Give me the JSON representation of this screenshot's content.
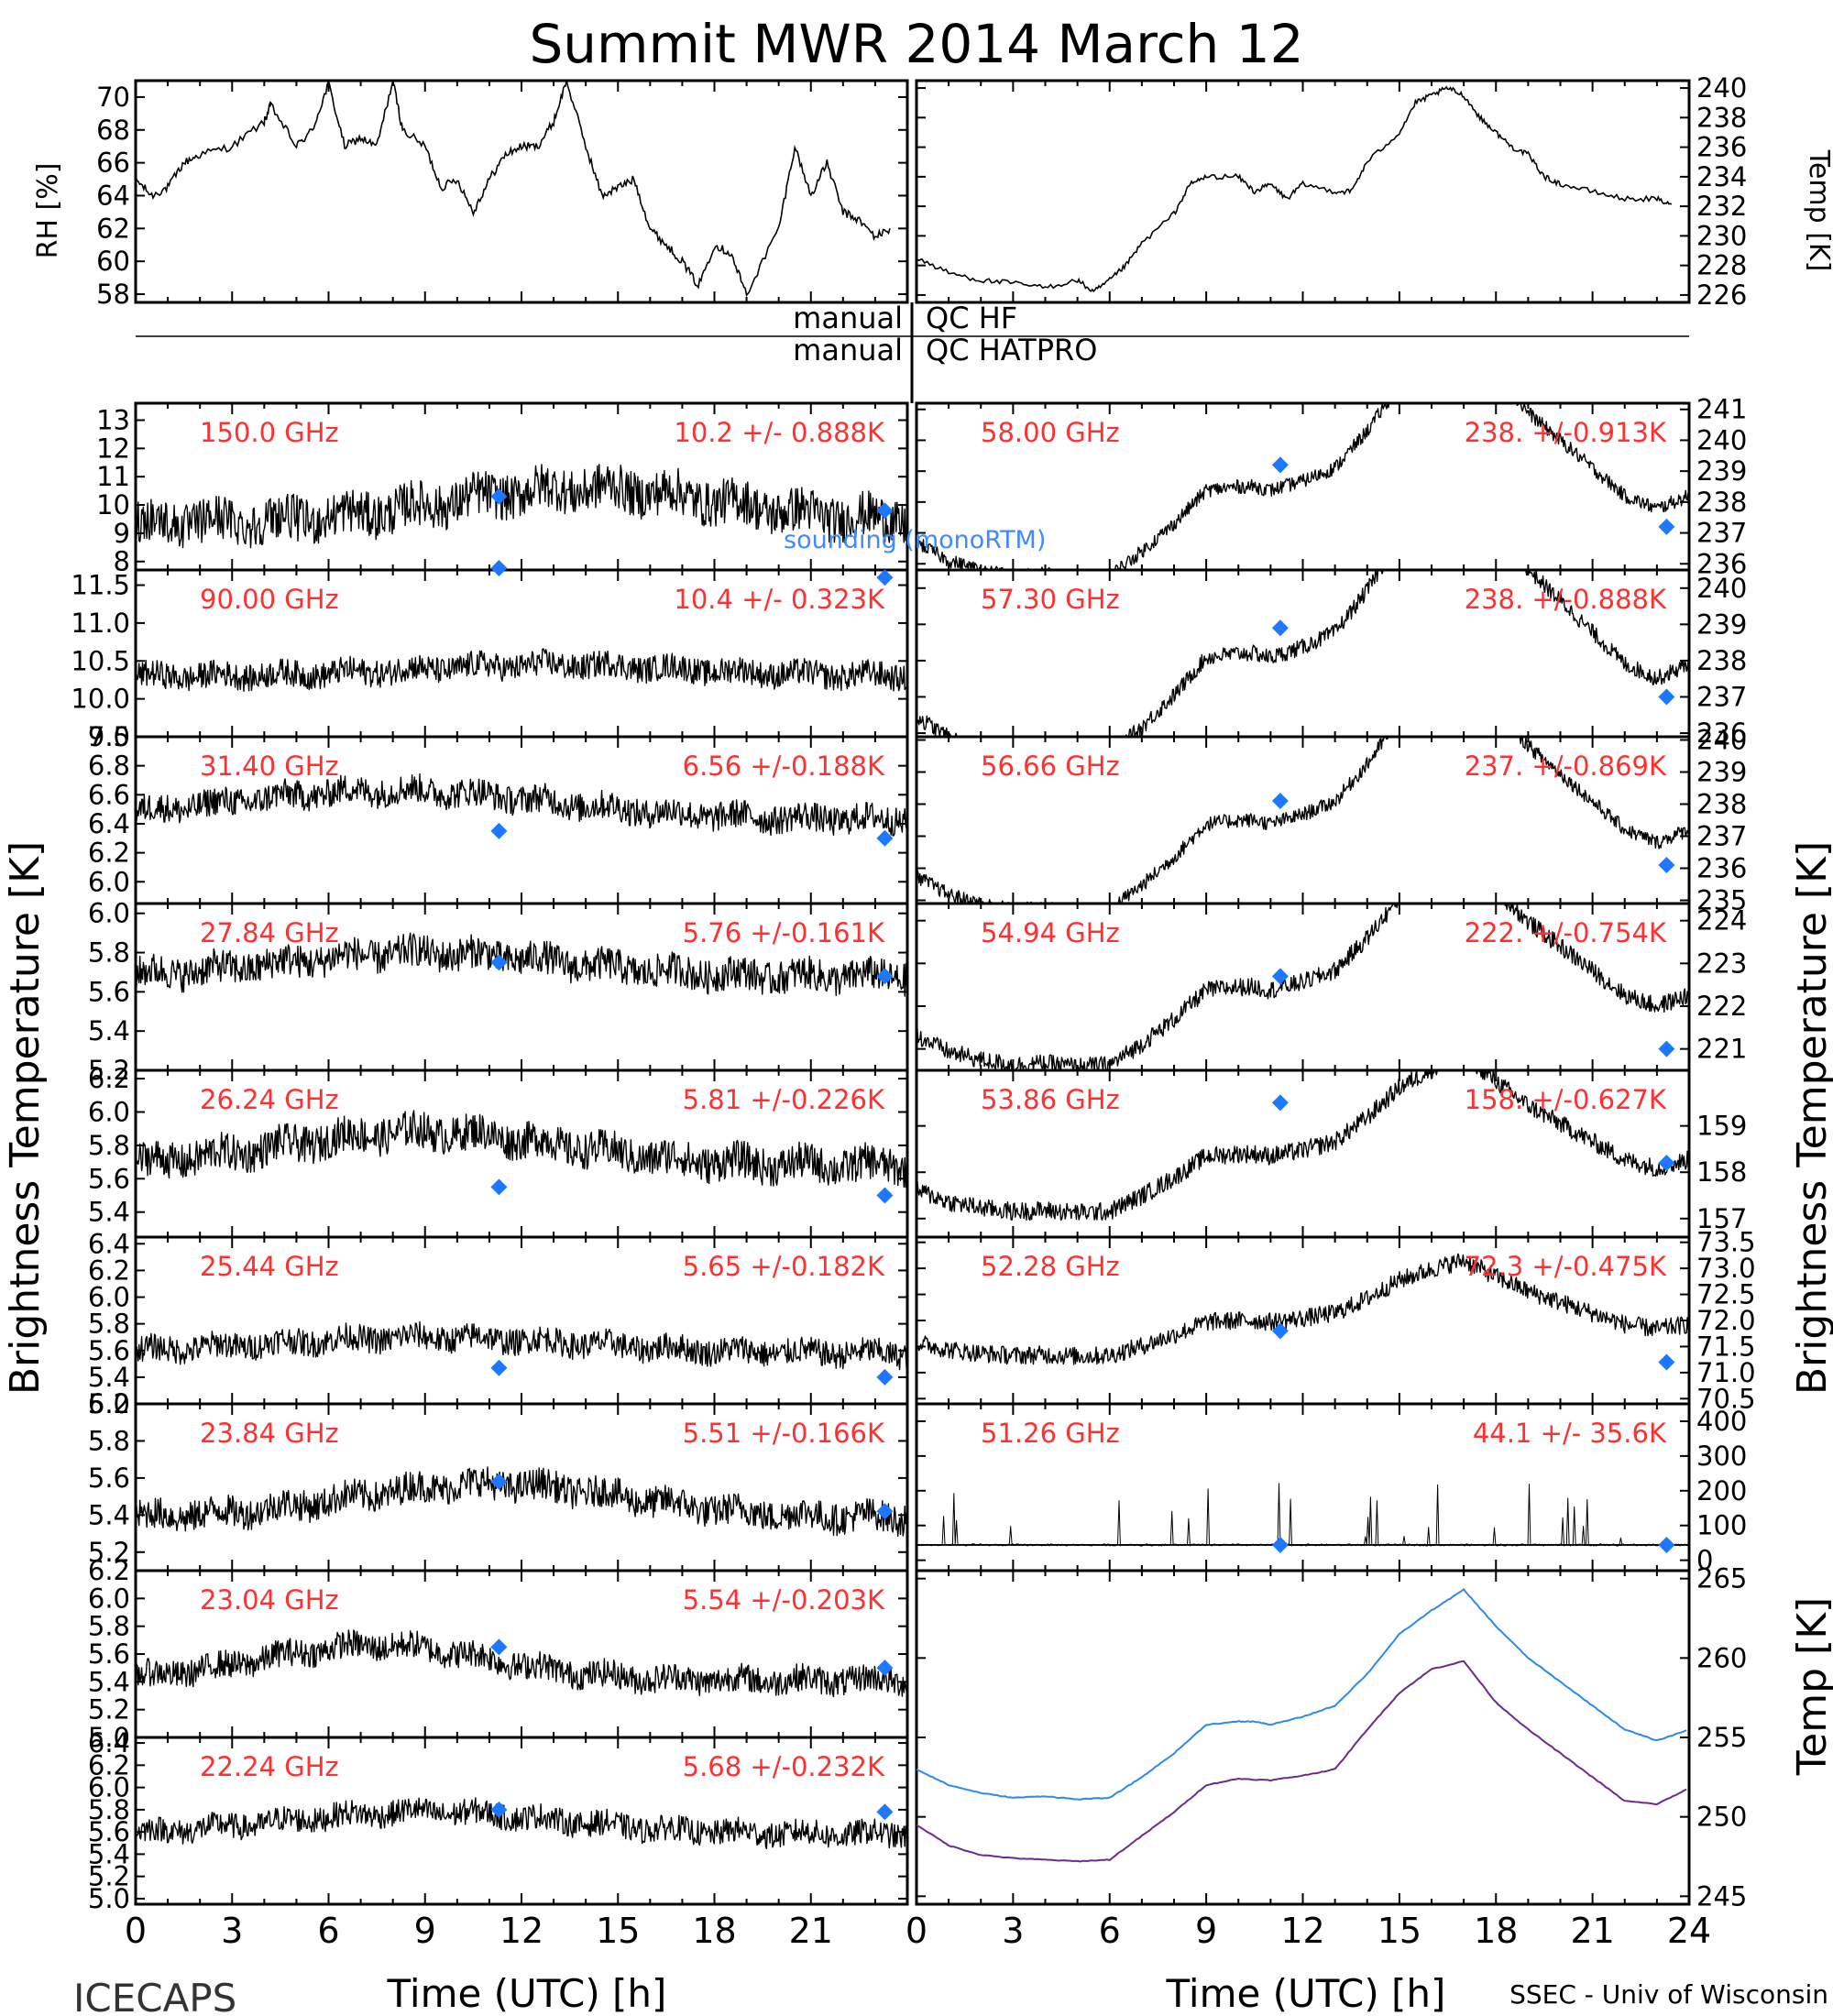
{
  "title": "Summit MWR 2014 March 12",
  "credits": {
    "left": "ICECAPS",
    "right": "SSEC - Univ of Wisconsin"
  },
  "qc": {
    "word": "manual",
    "hf": "QC HF",
    "hatpro": "QC HATPRO"
  },
  "axes": {
    "x_label": "Time (UTC) [h]",
    "x_ticks_left": [
      "0",
      "3",
      "6",
      "9",
      "12",
      "15",
      "18",
      "21"
    ],
    "x_ticks_right": [
      "0",
      "3",
      "6",
      "9",
      "12",
      "15",
      "18",
      "21",
      "24"
    ],
    "y_label_tb": "Brightness Temperature [K]",
    "rh_label": "RH [%]",
    "temp_label": "Temp [K]",
    "bb_label": "Temp [K]"
  },
  "colors": {
    "trace": "#000000",
    "label": "#ff3030",
    "sounding": "#1e78ff",
    "hatpro": "#2c8ae8",
    "hf": "#702a8c",
    "annotation_sounding": "#3d8bff"
  },
  "sounding_label": "sounding (monoRTM)",
  "chart_data": [
    {
      "type": "line",
      "id": "rh",
      "x_range": [
        0,
        24
      ],
      "ylim": [
        57.5,
        71
      ],
      "y_ticks": [
        "58",
        "60",
        "62",
        "64",
        "66",
        "68",
        "70"
      ],
      "ylabel": "RH [%]",
      "points": [
        [
          0,
          65
        ],
        [
          0.5,
          64
        ],
        [
          1,
          64.5
        ],
        [
          1.5,
          66
        ],
        [
          2,
          66.5
        ],
        [
          3,
          67
        ],
        [
          4,
          68.5
        ],
        [
          4.2,
          69.5
        ],
        [
          5,
          67
        ],
        [
          5.5,
          68
        ],
        [
          6,
          70.8
        ],
        [
          6.5,
          67
        ],
        [
          7,
          67.5
        ],
        [
          7.5,
          67
        ],
        [
          8,
          71
        ],
        [
          8.3,
          68
        ],
        [
          9,
          67
        ],
        [
          9.5,
          64.5
        ],
        [
          10,
          65
        ],
        [
          10.5,
          63
        ],
        [
          11,
          65
        ],
        [
          11.5,
          66.5
        ],
        [
          12,
          67
        ],
        [
          12.5,
          67
        ],
        [
          13,
          68.5
        ],
        [
          13.4,
          71
        ],
        [
          14,
          67
        ],
        [
          14.5,
          64
        ],
        [
          15,
          64.5
        ],
        [
          15.5,
          65
        ],
        [
          16,
          62
        ],
        [
          16.5,
          61
        ],
        [
          17,
          60
        ],
        [
          17.5,
          58.5
        ],
        [
          18,
          61
        ],
        [
          18.5,
          60.5
        ],
        [
          19,
          58
        ],
        [
          20,
          62
        ],
        [
          20.5,
          67
        ],
        [
          21,
          64
        ],
        [
          21.5,
          66
        ],
        [
          22,
          63
        ],
        [
          22.5,
          62.5
        ],
        [
          23,
          61.5
        ],
        [
          23.5,
          62
        ]
      ]
    },
    {
      "type": "line",
      "id": "temp",
      "x_range": [
        0,
        24
      ],
      "ylim": [
        225.5,
        240.5
      ],
      "y_ticks": [
        "226",
        "228",
        "230",
        "232",
        "234",
        "236",
        "238",
        "240"
      ],
      "ylabel": "Temp [K]",
      "points": [
        [
          0,
          228.5
        ],
        [
          1,
          227.5
        ],
        [
          2,
          227
        ],
        [
          3,
          226.8
        ],
        [
          4,
          226.5
        ],
        [
          5,
          227
        ],
        [
          5.5,
          226.2
        ],
        [
          6,
          227
        ],
        [
          6.5,
          228
        ],
        [
          7,
          229.5
        ],
        [
          8,
          231.5
        ],
        [
          8.5,
          233.5
        ],
        [
          9,
          234
        ],
        [
          10,
          234
        ],
        [
          10.5,
          233
        ],
        [
          11,
          233.5
        ],
        [
          11.5,
          232.5
        ],
        [
          12,
          233.5
        ],
        [
          13,
          233
        ],
        [
          13.5,
          233
        ],
        [
          14,
          235
        ],
        [
          15,
          237
        ],
        [
          15.5,
          239
        ],
        [
          16,
          239.5
        ],
        [
          16.5,
          240
        ],
        [
          17,
          239.5
        ],
        [
          17.5,
          238
        ],
        [
          18,
          237
        ],
        [
          18.5,
          236
        ],
        [
          19,
          235.5
        ],
        [
          19.5,
          234
        ],
        [
          20,
          233.5
        ],
        [
          21,
          233
        ],
        [
          22,
          232.5
        ],
        [
          23,
          232.5
        ],
        [
          23.5,
          232
        ]
      ]
    },
    {
      "type": "scatter",
      "id": "ch150",
      "freq": "150.0 GHz",
      "stats": "10.2 +/- 0.888K",
      "side": "left",
      "ylim": [
        7.7,
        13.6
      ],
      "y_ticks": [
        "8",
        "9",
        "10",
        "11",
        "12",
        "13"
      ],
      "noise": 1.6,
      "shape": "bump",
      "base": 9.8,
      "amp": 1.2,
      "peak": 14,
      "width": 6,
      "sounding": [
        [
          11.3,
          10.3
        ],
        [
          23.3,
          9.8
        ]
      ]
    },
    {
      "type": "scatter",
      "id": "ch90",
      "freq": "90.00 GHz",
      "stats": "10.4 +/- 0.323K",
      "side": "left",
      "ylim": [
        9.5,
        11.7
      ],
      "y_ticks": [
        "9.5",
        "10.0",
        "10.5",
        "11.0",
        "11.5"
      ],
      "noise": 0.35,
      "shape": "bump",
      "base": 10.35,
      "amp": 0.15,
      "peak": 13,
      "width": 6,
      "sounding": [
        [
          11.3,
          11.85
        ],
        [
          23.3,
          11.6
        ]
      ]
    },
    {
      "type": "scatter",
      "id": "ch3140",
      "freq": "31.40 GHz",
      "stats": "6.56 +/-0.188K",
      "side": "left",
      "ylim": [
        5.85,
        7.0
      ],
      "y_ticks": [
        "5.8",
        "6.0",
        "6.2",
        "6.4",
        "6.6",
        "6.8",
        "7.0"
      ],
      "noise": 0.2,
      "shape": "bump",
      "base": 6.5,
      "amp": 0.2,
      "peak": 8,
      "width": 7,
      "sounding": [
        [
          11.3,
          6.35
        ],
        [
          23.3,
          6.3
        ]
      ]
    },
    {
      "type": "scatter",
      "id": "ch2784",
      "freq": "27.84 GHz",
      "stats": "5.76 +/-0.161K",
      "side": "left",
      "ylim": [
        5.2,
        6.05
      ],
      "y_ticks": [
        "5.2",
        "5.4",
        "5.6",
        "5.8",
        "6.0"
      ],
      "noise": 0.17,
      "shape": "bump",
      "base": 5.72,
      "amp": 0.12,
      "peak": 9,
      "width": 6,
      "sounding": [
        [
          11.3,
          5.75
        ],
        [
          23.3,
          5.68
        ]
      ]
    },
    {
      "type": "scatter",
      "id": "ch2624",
      "freq": "26.24 GHz",
      "stats": "5.81 +/-0.226K",
      "side": "left",
      "ylim": [
        5.25,
        6.25
      ],
      "y_ticks": [
        "5.4",
        "5.6",
        "5.8",
        "6.0",
        "6.2"
      ],
      "noise": 0.22,
      "shape": "bump",
      "base": 5.75,
      "amp": 0.2,
      "peak": 9,
      "width": 6,
      "sounding": [
        [
          11.3,
          5.55
        ],
        [
          23.3,
          5.5
        ]
      ]
    },
    {
      "type": "scatter",
      "id": "ch2544",
      "freq": "25.44 GHz",
      "stats": "5.65 +/-0.182K",
      "side": "left",
      "ylim": [
        5.2,
        6.45
      ],
      "y_ticks": [
        "5.2",
        "5.4",
        "5.6",
        "5.8",
        "6.0",
        "6.2",
        "6.4"
      ],
      "noise": 0.2,
      "shape": "bump",
      "base": 5.62,
      "amp": 0.12,
      "peak": 9,
      "width": 7,
      "sounding": [
        [
          11.3,
          5.47
        ],
        [
          23.3,
          5.4
        ]
      ]
    },
    {
      "type": "scatter",
      "id": "ch2384",
      "freq": "23.84 GHz",
      "stats": "5.51 +/-0.166K",
      "side": "left",
      "ylim": [
        5.1,
        6.0
      ],
      "y_ticks": [
        "5.2",
        "5.4",
        "5.6",
        "5.8",
        "6.0"
      ],
      "noise": 0.17,
      "shape": "bump",
      "base": 5.45,
      "amp": 0.18,
      "peak": 11,
      "width": 6,
      "sounding": [
        [
          11.3,
          5.58
        ],
        [
          23.3,
          5.42
        ]
      ]
    },
    {
      "type": "scatter",
      "id": "ch2304",
      "freq": "23.04 GHz",
      "stats": "5.54 +/-0.203K",
      "side": "left",
      "ylim": [
        5.0,
        6.2
      ],
      "y_ticks": [
        "5.0",
        "5.2",
        "5.4",
        "5.6",
        "5.8",
        "6.0",
        "6.2"
      ],
      "noise": 0.2,
      "shape": "bump",
      "base": 5.5,
      "amp": 0.25,
      "peak": 7.5,
      "width": 5,
      "sounding": [
        [
          11.3,
          5.65
        ],
        [
          23.3,
          5.5
        ]
      ]
    },
    {
      "type": "scatter",
      "id": "ch2224",
      "freq": "22.24 GHz",
      "stats": "5.68 +/-0.232K",
      "side": "left",
      "ylim": [
        4.95,
        6.45
      ],
      "y_ticks": [
        "5.0",
        "5.2",
        "5.4",
        "5.6",
        "5.8",
        "6.0",
        "6.2",
        "6.4"
      ],
      "noise": 0.23,
      "shape": "bump",
      "base": 5.65,
      "amp": 0.2,
      "peak": 9,
      "width": 6,
      "sounding": [
        [
          11.3,
          5.8
        ],
        [
          23.3,
          5.78
        ]
      ]
    },
    {
      "type": "scatter",
      "id": "ch5800",
      "freq": "58.00 GHz",
      "stats": "238. +/-0.913K",
      "side": "right",
      "ylim": [
        235.8,
        241.2
      ],
      "y_ticks": [
        "236",
        "237",
        "238",
        "239",
        "240",
        "241"
      ],
      "noise": 0.45,
      "shape": "bb",
      "offset": -17.5,
      "scale": 0.6,
      "sounding": [
        [
          11.3,
          239.2
        ],
        [
          23.3,
          237.2
        ]
      ]
    },
    {
      "type": "scatter",
      "id": "ch5730",
      "freq": "57.30 GHz",
      "stats": "238. +/-0.888K",
      "side": "right",
      "ylim": [
        235.9,
        240.5
      ],
      "y_ticks": [
        "236",
        "237",
        "238",
        "239",
        "240"
      ],
      "noise": 0.45,
      "shape": "bb",
      "offset": -17.5,
      "scale": 0.58,
      "sounding": [
        [
          11.3,
          238.9
        ],
        [
          23.3,
          237.0
        ]
      ]
    },
    {
      "type": "scatter",
      "id": "ch5666",
      "freq": "56.66 GHz",
      "stats": "237. +/-0.869K",
      "side": "right",
      "ylim": [
        234.9,
        240.1
      ],
      "y_ticks": [
        "235",
        "236",
        "237",
        "238",
        "239",
        "240"
      ],
      "noise": 0.45,
      "shape": "bb",
      "offset": -18.3,
      "scale": 0.58,
      "sounding": [
        [
          11.3,
          238.1
        ],
        [
          23.3,
          236.1
        ]
      ]
    },
    {
      "type": "scatter",
      "id": "ch5494",
      "freq": "54.94 GHz",
      "stats": "222. +/-0.754K",
      "side": "right",
      "ylim": [
        220.5,
        224.4
      ],
      "y_ticks": [
        "221",
        "222",
        "223",
        "224"
      ],
      "noise": 0.42,
      "shape": "bb",
      "offset": -27.8,
      "scale": 0.38,
      "sounding": [
        [
          11.3,
          222.7
        ],
        [
          23.3,
          221.0
        ]
      ]
    },
    {
      "type": "scatter",
      "id": "ch5386",
      "freq": "53.86 GHz",
      "stats": "158. +/-0.627K",
      "side": "right",
      "ylim": [
        156.6,
        160.2
      ],
      "y_ticks": [
        "157",
        "158",
        "159"
      ],
      "noise": 0.4,
      "shape": "bb",
      "offset": -91,
      "scale": 0.26,
      "sounding": [
        [
          11.3,
          159.5
        ],
        [
          23.3,
          158.2
        ]
      ]
    },
    {
      "type": "scatter",
      "id": "ch5228",
      "freq": "52.28 GHz",
      "stats": "72.3 +/-0.475K",
      "side": "right",
      "ylim": [
        70.4,
        73.6
      ],
      "y_ticks": [
        "70.5",
        "71.0",
        "71.5",
        "72.0",
        "72.5",
        "73.0",
        "73.5"
      ],
      "noise": 0.35,
      "shape": "bb",
      "offset": -180.3,
      "scale": 0.14,
      "sounding": [
        [
          11.3,
          71.8
        ],
        [
          23.3,
          71.2
        ]
      ]
    },
    {
      "type": "scatter",
      "id": "ch5126",
      "freq": "51.26 GHz",
      "stats": "44.1 +/- 35.6K",
      "side": "right",
      "ylim": [
        -30,
        450
      ],
      "y_ticks": [
        "0",
        "100",
        "200",
        "300",
        "400"
      ],
      "noise": 0,
      "shape": "spiky",
      "base": 44,
      "sounding": [
        [
          11.3,
          44
        ],
        [
          23.3,
          44
        ]
      ]
    },
    {
      "type": "line",
      "id": "blackbody",
      "x_range": [
        0,
        24
      ],
      "ylim": [
        244.5,
        265.5
      ],
      "y_ticks": [
        "245",
        "250",
        "255",
        "260",
        "265"
      ],
      "ylabel": "Temp [K]",
      "series": [
        {
          "name": "Blackbody HATPRO",
          "color": "#2c8ae8",
          "points": [
            [
              0,
              253
            ],
            [
              1,
              252
            ],
            [
              2,
              251.5
            ],
            [
              3,
              251.2
            ],
            [
              4,
              251.3
            ],
            [
              5,
              251.1
            ],
            [
              6,
              251.2
            ],
            [
              7,
              252.5
            ],
            [
              8,
              254
            ],
            [
              9,
              255.8
            ],
            [
              10,
              256
            ],
            [
              10.5,
              256
            ],
            [
              11,
              255.8
            ],
            [
              12,
              256.3
            ],
            [
              13,
              257
            ],
            [
              14,
              259
            ],
            [
              15,
              261.5
            ],
            [
              16,
              263
            ],
            [
              17,
              264.3
            ],
            [
              18,
              262
            ],
            [
              19,
              260
            ],
            [
              20,
              258.5
            ],
            [
              21,
              257
            ],
            [
              22,
              255.5
            ],
            [
              23,
              254.8
            ],
            [
              24,
              255.5
            ]
          ]
        },
        {
          "name": "Blackbody HF",
          "color": "#702a8c",
          "points": [
            [
              0,
              249.5
            ],
            [
              1,
              248.2
            ],
            [
              2,
              247.6
            ],
            [
              3,
              247.4
            ],
            [
              4,
              247.3
            ],
            [
              5,
              247.2
            ],
            [
              6,
              247.3
            ],
            [
              7,
              248.8
            ],
            [
              8,
              250.3
            ],
            [
              9,
              252
            ],
            [
              10,
              252.4
            ],
            [
              11,
              252.3
            ],
            [
              12,
              252.6
            ],
            [
              13,
              253
            ],
            [
              14,
              255.5
            ],
            [
              15,
              257.8
            ],
            [
              16,
              259.3
            ],
            [
              17,
              259.8
            ],
            [
              18,
              257.2
            ],
            [
              19,
              255.5
            ],
            [
              20,
              254
            ],
            [
              21,
              252.5
            ],
            [
              22,
              251
            ],
            [
              23,
              250.8
            ],
            [
              24,
              251.8
            ]
          ]
        }
      ]
    }
  ]
}
